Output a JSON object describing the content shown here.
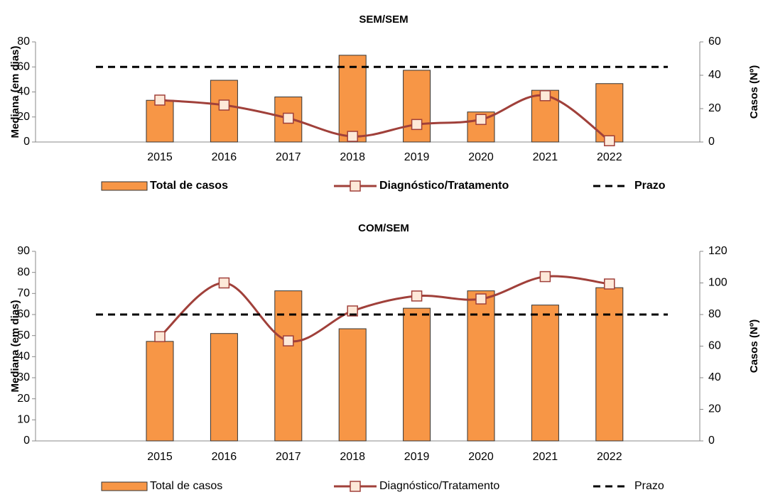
{
  "chart_data": [
    {
      "type": "bar",
      "title": "SEM/SEM",
      "y_label": "Mediana (em dias)",
      "y2_label": "Casos (Nº)",
      "categories": [
        "2015",
        "2016",
        "2017",
        "2018",
        "2019",
        "2020",
        "2021",
        "2022"
      ],
      "ylim": [
        0,
        80
      ],
      "yticks": [
        0,
        20,
        40,
        60,
        80
      ],
      "y2lim": [
        0,
        60
      ],
      "y2ticks": [
        0,
        20,
        40,
        60
      ],
      "series": [
        {
          "name": "Total de casos",
          "type": "bar",
          "axis": "y2",
          "color": "#f79646",
          "values": [
            25,
            37,
            27,
            52,
            43,
            18,
            31,
            35
          ]
        },
        {
          "name": "Diagnóstico/Tratamento",
          "type": "line",
          "color": "#a0403a",
          "values": [
            33.5,
            29.5,
            19,
            4.5,
            14,
            18,
            37,
            1
          ]
        },
        {
          "name": "Prazo",
          "type": "reference",
          "color": "#000000",
          "value": 60
        }
      ]
    },
    {
      "type": "bar",
      "title": "COM/SEM",
      "y_label": "Mediana (em dias)",
      "y2_label": "Casos (Nº)",
      "categories": [
        "2015",
        "2016",
        "2017",
        "2018",
        "2019",
        "2020",
        "2021",
        "2022"
      ],
      "ylim": [
        0,
        90
      ],
      "yticks": [
        0,
        10,
        20,
        30,
        40,
        50,
        60,
        70,
        80,
        90
      ],
      "y2lim": [
        0,
        120
      ],
      "y2ticks": [
        0,
        20,
        40,
        60,
        80,
        100,
        120
      ],
      "series": [
        {
          "name": "Total de casos",
          "type": "bar",
          "axis": "y2",
          "color": "#f79646",
          "values": [
            63,
            68,
            95,
            71,
            84,
            95,
            86,
            97
          ]
        },
        {
          "name": "Diagnóstico/Tratamento",
          "type": "line",
          "color": "#a0403a",
          "values": [
            49.5,
            75,
            47.5,
            61.7,
            68.8,
            67.4,
            78,
            74.5
          ]
        },
        {
          "name": "Prazo",
          "type": "reference",
          "color": "#000000",
          "value": 60
        }
      ]
    }
  ]
}
